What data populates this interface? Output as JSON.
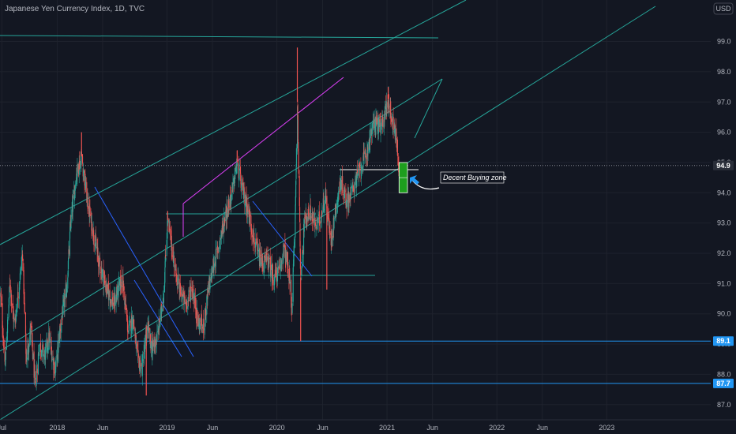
{
  "header": {
    "title": "Japanese Yen Currency Index, 1D, TVC",
    "currency": "USD"
  },
  "colors": {
    "background": "#131722",
    "up": "#26a69a",
    "down": "#ef5350",
    "channel": "#26a69a",
    "price_line": "#2196f3",
    "magenta": "#e040fb",
    "blue_trend": "#2962ff",
    "zone": "#1e9e1e",
    "arrow": "#2196f3"
  },
  "chart_data": {
    "type": "candlestick",
    "title": "Japanese Yen Currency Index, 1D, TVC",
    "ylim": [
      86.3,
      100.0
    ],
    "x_range": [
      "2017-06-25",
      "2023-06-12"
    ],
    "x_ticks": [
      {
        "label": "Jul",
        "date": "2017-07-01"
      },
      {
        "label": "2018",
        "date": "2018-01-01"
      },
      {
        "label": "Jun",
        "date": "2018-06-01"
      },
      {
        "label": "2019",
        "date": "2019-01-01"
      },
      {
        "label": "Jun",
        "date": "2019-06-01"
      },
      {
        "label": "2020",
        "date": "2020-01-01"
      },
      {
        "label": "Jun",
        "date": "2020-06-01"
      },
      {
        "label": "2021",
        "date": "2021-01-01"
      },
      {
        "label": "Jun",
        "date": "2021-06-01"
      },
      {
        "label": "2022",
        "date": "2022-01-01"
      },
      {
        "label": "Jun",
        "date": "2022-06-01"
      },
      {
        "label": "2023",
        "date": "2023-01-01"
      }
    ],
    "y_ticks": [
      "87.0",
      "88.0",
      "89.0",
      "90.0",
      "91.0",
      "92.0",
      "93.0",
      "94.0",
      "95.0",
      "96.0",
      "97.0",
      "98.0",
      "99.0"
    ],
    "price_path": [
      {
        "date": "2017-06-27",
        "close": 90.6
      },
      {
        "date": "2017-07-12",
        "close": 88.3
      },
      {
        "date": "2017-07-28",
        "close": 91.0
      },
      {
        "date": "2017-08-12",
        "close": 89.6
      },
      {
        "date": "2017-09-08",
        "close": 92.0
      },
      {
        "date": "2017-09-20",
        "close": 88.5
      },
      {
        "date": "2017-10-05",
        "close": 89.5
      },
      {
        "date": "2017-10-20",
        "close": 87.6
      },
      {
        "date": "2017-11-03",
        "close": 89.0
      },
      {
        "date": "2017-11-20",
        "close": 88.6
      },
      {
        "date": "2017-12-05",
        "close": 89.2
      },
      {
        "date": "2017-12-25",
        "close": 88.1
      },
      {
        "date": "2018-01-15",
        "close": 89.8
      },
      {
        "date": "2018-02-01",
        "close": 90.8
      },
      {
        "date": "2018-02-15",
        "close": 93.0
      },
      {
        "date": "2018-03-05",
        "close": 94.6
      },
      {
        "date": "2018-03-23",
        "close": 95.2
      },
      {
        "date": "2018-04-10",
        "close": 93.8
      },
      {
        "date": "2018-04-25",
        "close": 93.0
      },
      {
        "date": "2018-05-20",
        "close": 91.7
      },
      {
        "date": "2018-06-15",
        "close": 90.8
      },
      {
        "date": "2018-07-08",
        "close": 90.3
      },
      {
        "date": "2018-08-05",
        "close": 91.2
      },
      {
        "date": "2018-08-25",
        "close": 89.4
      },
      {
        "date": "2018-09-10",
        "close": 89.9
      },
      {
        "date": "2018-09-25",
        "close": 88.5
      },
      {
        "date": "2018-10-10",
        "close": 88.2
      },
      {
        "date": "2018-10-28",
        "close": 89.6
      },
      {
        "date": "2018-11-12",
        "close": 88.8
      },
      {
        "date": "2018-12-01",
        "close": 89.3
      },
      {
        "date": "2018-12-20",
        "close": 90.6
      },
      {
        "date": "2019-01-03",
        "close": 93.1
      },
      {
        "date": "2019-01-20",
        "close": 92.0
      },
      {
        "date": "2019-02-10",
        "close": 90.8
      },
      {
        "date": "2019-03-05",
        "close": 90.3
      },
      {
        "date": "2019-03-25",
        "close": 90.9
      },
      {
        "date": "2019-04-15",
        "close": 89.7
      },
      {
        "date": "2019-05-03",
        "close": 89.6
      },
      {
        "date": "2019-05-20",
        "close": 90.9
      },
      {
        "date": "2019-06-05",
        "close": 91.6
      },
      {
        "date": "2019-06-25",
        "close": 92.4
      },
      {
        "date": "2019-07-12",
        "close": 93.2
      },
      {
        "date": "2019-08-05",
        "close": 94.0
      },
      {
        "date": "2019-08-22",
        "close": 95.0
      },
      {
        "date": "2019-09-05",
        "close": 94.2
      },
      {
        "date": "2019-09-25",
        "close": 93.5
      },
      {
        "date": "2019-10-10",
        "close": 92.8
      },
      {
        "date": "2019-10-28",
        "close": 92.0
      },
      {
        "date": "2019-11-15",
        "close": 91.6
      },
      {
        "date": "2019-12-01",
        "close": 91.8
      },
      {
        "date": "2019-12-20",
        "close": 91.2
      },
      {
        "date": "2020-01-10",
        "close": 91.4
      },
      {
        "date": "2020-01-25",
        "close": 92.2
      },
      {
        "date": "2020-02-10",
        "close": 91.3
      },
      {
        "date": "2020-02-20",
        "close": 90.2
      },
      {
        "date": "2020-03-02",
        "close": 93.3
      },
      {
        "date": "2020-03-09",
        "close": 97.0
      },
      {
        "date": "2020-03-20",
        "close": 91.2
      },
      {
        "date": "2020-04-01",
        "close": 93.0
      },
      {
        "date": "2020-04-20",
        "close": 93.4
      },
      {
        "date": "2020-05-08",
        "close": 92.9
      },
      {
        "date": "2020-05-25",
        "close": 93.2
      },
      {
        "date": "2020-06-10",
        "close": 93.9
      },
      {
        "date": "2020-06-28",
        "close": 92.4
      },
      {
        "date": "2020-07-15",
        "close": 93.5
      },
      {
        "date": "2020-08-01",
        "close": 94.4
      },
      {
        "date": "2020-08-20",
        "close": 93.7
      },
      {
        "date": "2020-09-05",
        "close": 94.0
      },
      {
        "date": "2020-09-20",
        "close": 94.4
      },
      {
        "date": "2020-10-05",
        "close": 94.8
      },
      {
        "date": "2020-10-25",
        "close": 95.3
      },
      {
        "date": "2020-11-10",
        "close": 96.0
      },
      {
        "date": "2020-11-25",
        "close": 96.4
      },
      {
        "date": "2020-12-10",
        "close": 96.1
      },
      {
        "date": "2020-12-22",
        "close": 96.5
      },
      {
        "date": "2021-01-05",
        "close": 97.1
      },
      {
        "date": "2021-01-18",
        "close": 96.4
      },
      {
        "date": "2021-02-01",
        "close": 95.8
      },
      {
        "date": "2021-02-10",
        "close": 94.9
      }
    ],
    "extremes": [
      {
        "date": "2020-03-09",
        "high": 98.8
      },
      {
        "date": "2020-03-20",
        "low": 89.1
      },
      {
        "date": "2020-06-15",
        "low": 90.8
      },
      {
        "date": "2018-10-24",
        "low": 87.3
      },
      {
        "date": "2018-03-23",
        "high": 96.0
      },
      {
        "date": "2021-01-05",
        "high": 97.5
      },
      {
        "date": "2019-08-22",
        "high": 95.4
      },
      {
        "date": "2019-01-03",
        "high": 93.4
      }
    ],
    "horizontal_levels": [
      {
        "value": 89.1,
        "label": "89.1",
        "style": "price-line"
      },
      {
        "value": 87.7,
        "label": "87.7",
        "style": "price-line"
      },
      {
        "value": 94.9,
        "label": "94.9",
        "style": "current-price"
      }
    ],
    "annotations": [
      {
        "text": "Decent Buying zone"
      }
    ],
    "buying_zone": {
      "y_top": 95.0,
      "y_bottom": 94.0,
      "date_start": "2021-02-10",
      "date_end": "2021-03-10"
    }
  }
}
